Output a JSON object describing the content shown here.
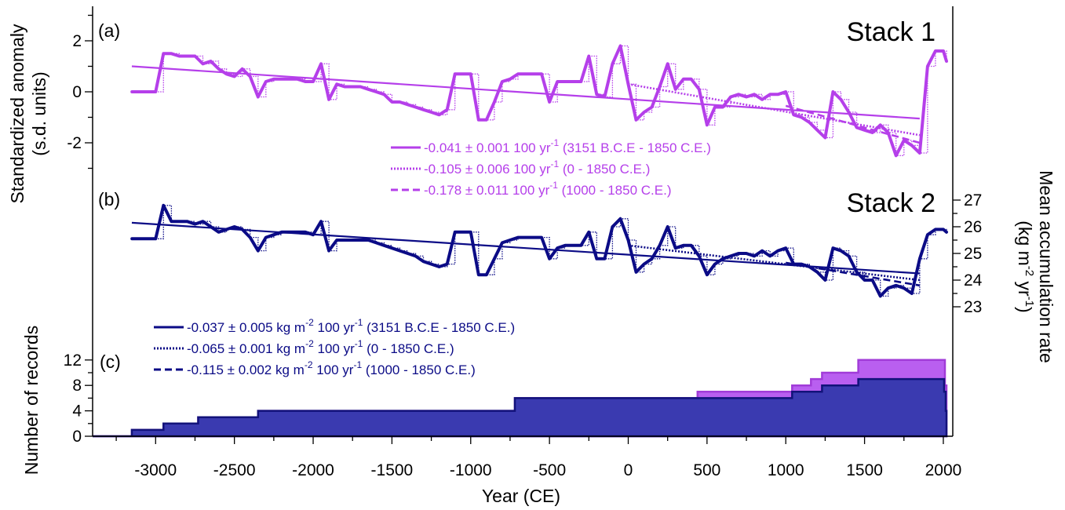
{
  "chart_data": [
    {
      "panel": "(a)",
      "type": "line",
      "title": "Stack 1",
      "ylabel": "Standardized anomaly (s.d. units)",
      "xlim": [
        -3400,
        2050
      ],
      "ylim": [
        -3.1,
        3.3
      ],
      "yticks_labeled": [
        -2,
        0,
        2
      ],
      "color": "#b53fea",
      "x": [
        -3150,
        -3000,
        -2950,
        -2900,
        -2850,
        -2800,
        -2750,
        -2700,
        -2650,
        -2600,
        -2550,
        -2500,
        -2450,
        -2400,
        -2350,
        -2300,
        -2250,
        -2200,
        -2150,
        -2100,
        -2050,
        -2000,
        -1950,
        -1900,
        -1850,
        -1800,
        -1750,
        -1700,
        -1650,
        -1600,
        -1550,
        -1500,
        -1450,
        -1400,
        -1350,
        -1300,
        -1250,
        -1200,
        -1150,
        -1100,
        -1050,
        -1000,
        -950,
        -900,
        -850,
        -800,
        -750,
        -700,
        -650,
        -600,
        -550,
        -500,
        -450,
        -400,
        -350,
        -300,
        -250,
        -200,
        -150,
        -100,
        -50,
        0,
        50,
        100,
        150,
        200,
        250,
        300,
        350,
        400,
        450,
        500,
        550,
        600,
        650,
        700,
        750,
        800,
        850,
        900,
        950,
        1000,
        1050,
        1100,
        1150,
        1200,
        1250,
        1300,
        1350,
        1400,
        1450,
        1500,
        1550,
        1600,
        1650,
        1700,
        1750,
        1800,
        1850,
        1900,
        1950,
        2000,
        2020
      ],
      "series": [
        {
          "values": [
            0,
            0,
            1.5,
            1.5,
            1.4,
            1.4,
            1.4,
            1.1,
            1.2,
            0.9,
            0.7,
            0.6,
            0.9,
            0.6,
            -0.2,
            0.4,
            0.5,
            0.5,
            0.5,
            0.5,
            0.4,
            0.4,
            1.1,
            -0.3,
            0.3,
            0.2,
            0.2,
            0.2,
            0.1,
            0,
            -0.1,
            -0.4,
            -0.4,
            -0.5,
            -0.6,
            -0.7,
            -0.8,
            -0.9,
            -0.7,
            0.7,
            0.7,
            0.7,
            -1.1,
            -1.1,
            -0.4,
            0.4,
            0.5,
            0.7,
            0.7,
            0.7,
            0.7,
            -0.4,
            0.4,
            0.4,
            0.4,
            0.4,
            1.4,
            -0.1,
            -0.2,
            1.1,
            1.8,
            0.3,
            -1.1,
            -0.8,
            -0.6,
            0.2,
            1.1,
            0.1,
            0.5,
            0.5,
            0.1,
            -1.3,
            -0.6,
            -0.6,
            -0.2,
            -0.1,
            -0.2,
            -0.1,
            -0.3,
            -0.1,
            -0.1,
            0,
            -0.9,
            -1,
            -1.2,
            -1.5,
            -1.8,
            0,
            -0.3,
            -0.8,
            -1.4,
            -1.5,
            -1.6,
            -1.3,
            -1.6,
            -2.5,
            -1.9,
            -2.1,
            -2.4,
            1,
            1.6,
            1.6,
            1.2
          ]
        }
      ],
      "legend": [
        {
          "style": "solid",
          "label": "-0.041 ± 0.001 100 yr",
          "sup": "-1",
          "suffix": " (3151 B.C.E - 1850 C.E.)",
          "trend_start": [
            -3151,
            1.0
          ],
          "trend_end": [
            1850,
            -1.05
          ]
        },
        {
          "style": "dotted",
          "label": "-0.105 ± 0.006 100 yr",
          "sup": "-1",
          "suffix": " (0 - 1850 C.E.)",
          "trend_start": [
            0,
            0.3
          ],
          "trend_end": [
            1850,
            -1.7
          ]
        },
        {
          "style": "dashed",
          "label": "-0.178 ± 0.011 100 yr",
          "sup": "-1",
          "suffix": " (1000 - 1850 C.E.)",
          "trend_start": [
            1000,
            -0.55
          ],
          "trend_end": [
            1850,
            -2.0
          ]
        }
      ]
    },
    {
      "panel": "(b)",
      "type": "line",
      "title": "Stack 2",
      "ylabel": "Mean accumulation rate (kg m-2 yr-1)",
      "ylabel_parts": {
        "line1": "Mean accumulation rate",
        "line2_open": "(kg m",
        "sup1": "-2",
        "line2_mid": " yr",
        "sup2": "-1",
        "line2_close": ")"
      },
      "xlim": [
        -3400,
        2050
      ],
      "ylim": [
        22.7,
        27.5
      ],
      "yticks_labeled": [
        23,
        24,
        25,
        26,
        27
      ],
      "color": "#0b0b86",
      "x": [
        -3150,
        -3000,
        -2950,
        -2900,
        -2850,
        -2800,
        -2750,
        -2700,
        -2650,
        -2600,
        -2550,
        -2500,
        -2450,
        -2400,
        -2350,
        -2300,
        -2250,
        -2200,
        -2150,
        -2100,
        -2050,
        -2000,
        -1950,
        -1900,
        -1850,
        -1800,
        -1750,
        -1700,
        -1650,
        -1600,
        -1550,
        -1500,
        -1450,
        -1400,
        -1350,
        -1300,
        -1250,
        -1200,
        -1150,
        -1100,
        -1050,
        -1000,
        -950,
        -900,
        -850,
        -800,
        -750,
        -700,
        -650,
        -600,
        -550,
        -500,
        -450,
        -400,
        -350,
        -300,
        -250,
        -200,
        -150,
        -100,
        -50,
        0,
        50,
        100,
        150,
        200,
        250,
        300,
        350,
        400,
        450,
        500,
        550,
        600,
        650,
        700,
        750,
        800,
        850,
        900,
        950,
        1000,
        1050,
        1100,
        1150,
        1200,
        1250,
        1300,
        1350,
        1400,
        1450,
        1500,
        1550,
        1600,
        1650,
        1700,
        1750,
        1800,
        1850,
        1900,
        1950,
        2000,
        2020
      ],
      "series": [
        {
          "values": [
            25.55,
            25.55,
            26.8,
            26.2,
            26.2,
            26.2,
            26.1,
            26.2,
            26,
            25.8,
            25.9,
            26,
            25.9,
            25.6,
            25.1,
            25.6,
            25.7,
            25.8,
            25.8,
            25.8,
            25.8,
            25.7,
            26.2,
            25.1,
            25.5,
            25.5,
            25.5,
            25.5,
            25.5,
            25.4,
            25.3,
            25.2,
            25.1,
            25,
            24.9,
            24.7,
            24.6,
            24.5,
            24.6,
            25.8,
            25.8,
            25.8,
            24.2,
            24.2,
            24.8,
            25.4,
            25.5,
            25.6,
            25.6,
            25.6,
            25.6,
            24.8,
            25.2,
            25.3,
            25.3,
            25.3,
            25.8,
            24.8,
            24.8,
            26,
            26.3,
            25.5,
            24.3,
            24.6,
            24.8,
            25.3,
            26,
            25.2,
            25.3,
            25.3,
            24.9,
            24.2,
            24.6,
            24.8,
            24.9,
            25,
            25,
            24.9,
            25.1,
            24.9,
            25.1,
            25.2,
            24.6,
            24.6,
            24.5,
            24.3,
            24,
            25.2,
            25.1,
            24.9,
            24.3,
            24,
            24,
            23.4,
            23.7,
            23.8,
            23.7,
            23.5,
            24.8,
            25.7,
            25.9,
            25.9,
            25.8
          ]
        }
      ],
      "legend": [
        {
          "style": "solid",
          "label": "-0.037 ± 0.005 kg m",
          "sup": "-2",
          "suffix": " 100 yr",
          "sup2": "-1",
          "suffix2": " (3151 B.C.E - 1850 C.E.)",
          "trend_start": [
            -3151,
            26.15
          ],
          "trend_end": [
            1850,
            24.25
          ]
        },
        {
          "style": "dotted",
          "label": "-0.065 ± 0.001 kg m",
          "sup": "-2",
          "suffix": " 100 yr",
          "sup2": "-1",
          "suffix2": " (0 - 1850 C.E.)",
          "trend_start": [
            0,
            25.3
          ],
          "trend_end": [
            1850,
            24.0
          ]
        },
        {
          "style": "dashed",
          "label": "-0.115 ± 0.002 kg m",
          "sup": "-2",
          "suffix": " 100 yr",
          "sup2": "-1",
          "suffix2": " (1000 - 1850 C.E.)",
          "trend_start": [
            1000,
            24.65
          ],
          "trend_end": [
            1850,
            23.8
          ]
        }
      ]
    },
    {
      "panel": "(c)",
      "type": "area",
      "ylabel": "Number of records",
      "xlabel": "Year (CE)",
      "xlim": [
        -3400,
        2050
      ],
      "ylim": [
        0,
        13
      ],
      "yticks_labeled": [
        0,
        4,
        8,
        12
      ],
      "xticks_labeled": [
        -3000,
        -2500,
        -2000,
        -1500,
        -1000,
        -500,
        0,
        500,
        1000,
        1500,
        2000
      ],
      "series": [
        {
          "color": "#b95ff0",
          "steps": [
            [
              -3400,
              0
            ],
            [
              -3151,
              1
            ],
            [
              -2950,
              2
            ],
            [
              -2730,
              3
            ],
            [
              -2350,
              4
            ],
            [
              -720,
              6
            ],
            [
              440,
              7
            ],
            [
              1040,
              8
            ],
            [
              1160,
              9
            ],
            [
              1230,
              10
            ],
            [
              1460,
              12
            ],
            [
              2000,
              12
            ],
            [
              2010,
              8
            ],
            [
              2020,
              0
            ]
          ]
        },
        {
          "color": "#3a3ab0",
          "steps": [
            [
              -3400,
              0
            ],
            [
              -3151,
              1
            ],
            [
              -2950,
              2
            ],
            [
              -2730,
              3
            ],
            [
              -2350,
              4
            ],
            [
              -720,
              6
            ],
            [
              1040,
              7
            ],
            [
              1230,
              8
            ],
            [
              1460,
              9
            ],
            [
              1990,
              9
            ],
            [
              2005,
              7
            ],
            [
              2015,
              4
            ],
            [
              2020,
              0
            ]
          ]
        }
      ]
    }
  ]
}
